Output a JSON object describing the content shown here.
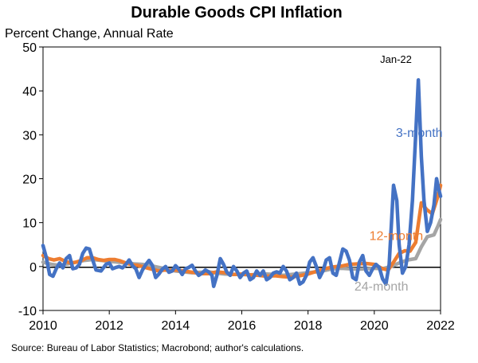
{
  "chart_data": {
    "type": "line",
    "title": "Durable Goods CPI Inflation",
    "ylabel": "Percent Change, Annual Rate",
    "source": "Source: Bureau of Labor Statistics; Macrobond; author's calculations.",
    "annotation": "Jan-22",
    "xlim": [
      2010,
      2022
    ],
    "ylim": [
      -10,
      50
    ],
    "x_ticks": [
      "2010",
      "2012",
      "2014",
      "2016",
      "2018",
      "2020",
      "2022"
    ],
    "y_ticks": [
      "50",
      "40",
      "30",
      "20",
      "10",
      "0",
      "-10"
    ],
    "grid": false,
    "series": [
      {
        "name": "24-month",
        "color": "#A5A5A5",
        "points": [
          [
            2010.0,
            1.0
          ],
          [
            2010.25,
            0.5
          ],
          [
            2010.5,
            0.3
          ],
          [
            2010.75,
            0.6
          ],
          [
            2011.0,
            1.0
          ],
          [
            2011.25,
            1.4
          ],
          [
            2011.5,
            1.6
          ],
          [
            2011.75,
            1.4
          ],
          [
            2012.0,
            1.2
          ],
          [
            2012.25,
            1.0
          ],
          [
            2012.5,
            0.8
          ],
          [
            2012.75,
            0.6
          ],
          [
            2013.0,
            0.5
          ],
          [
            2013.25,
            0.2
          ],
          [
            2013.5,
            -0.2
          ],
          [
            2013.75,
            -0.6
          ],
          [
            2014.0,
            -1.0
          ],
          [
            2014.25,
            -1.2
          ],
          [
            2014.5,
            -1.4
          ],
          [
            2014.75,
            -1.3
          ],
          [
            2015.0,
            -1.2
          ],
          [
            2015.25,
            -1.5
          ],
          [
            2015.5,
            -1.7
          ],
          [
            2015.75,
            -1.8
          ],
          [
            2016.0,
            -1.8
          ],
          [
            2016.25,
            -1.9
          ],
          [
            2016.5,
            -1.8
          ],
          [
            2016.75,
            -1.7
          ],
          [
            2017.0,
            -1.8
          ],
          [
            2017.25,
            -2.0
          ],
          [
            2017.5,
            -1.8
          ],
          [
            2017.75,
            -1.6
          ],
          [
            2018.0,
            -1.4
          ],
          [
            2018.25,
            -1.2
          ],
          [
            2018.5,
            -0.9
          ],
          [
            2018.75,
            -0.5
          ],
          [
            2019.0,
            -0.4
          ],
          [
            2019.25,
            -0.5
          ],
          [
            2019.5,
            -0.6
          ],
          [
            2019.75,
            -0.5
          ],
          [
            2020.0,
            -0.4
          ],
          [
            2020.25,
            -0.5
          ],
          [
            2020.5,
            0.0
          ],
          [
            2020.75,
            0.8
          ],
          [
            2021.0,
            1.5
          ],
          [
            2021.25,
            1.8
          ],
          [
            2021.42,
            4.5
          ],
          [
            2021.6,
            6.8
          ],
          [
            2021.8,
            7.2
          ],
          [
            2021.92,
            9.2
          ],
          [
            2022.0,
            10.7
          ]
        ]
      },
      {
        "name": "12-month",
        "color": "#ED7D31",
        "points": [
          [
            2010.0,
            2.5
          ],
          [
            2010.17,
            1.8
          ],
          [
            2010.33,
            1.5
          ],
          [
            2010.5,
            1.8
          ],
          [
            2010.67,
            1.2
          ],
          [
            2010.83,
            0.8
          ],
          [
            2011.0,
            1.0
          ],
          [
            2011.17,
            1.4
          ],
          [
            2011.33,
            2.0
          ],
          [
            2011.5,
            2.0
          ],
          [
            2011.67,
            1.6
          ],
          [
            2011.83,
            1.4
          ],
          [
            2012.0,
            1.6
          ],
          [
            2012.17,
            1.6
          ],
          [
            2012.33,
            1.3
          ],
          [
            2012.5,
            0.8
          ],
          [
            2012.67,
            0.4
          ],
          [
            2012.83,
            0.3
          ],
          [
            2013.0,
            0.0
          ],
          [
            2013.17,
            -0.4
          ],
          [
            2013.33,
            -0.7
          ],
          [
            2013.5,
            -1.0
          ],
          [
            2013.67,
            -0.8
          ],
          [
            2013.83,
            -0.9
          ],
          [
            2014.0,
            -0.8
          ],
          [
            2014.25,
            -1.0
          ],
          [
            2014.5,
            -1.3
          ],
          [
            2014.75,
            -1.6
          ],
          [
            2015.0,
            -1.6
          ],
          [
            2015.25,
            -1.2
          ],
          [
            2015.5,
            -1.4
          ],
          [
            2015.75,
            -1.8
          ],
          [
            2016.0,
            -1.7
          ],
          [
            2016.25,
            -1.9
          ],
          [
            2016.5,
            -2.0
          ],
          [
            2016.75,
            -2.2
          ],
          [
            2017.0,
            -2.1
          ],
          [
            2017.25,
            -2.3
          ],
          [
            2017.5,
            -2.4
          ],
          [
            2017.75,
            -2.1
          ],
          [
            2018.0,
            -1.7
          ],
          [
            2018.25,
            -1.1
          ],
          [
            2018.5,
            -0.5
          ],
          [
            2018.75,
            -0.1
          ],
          [
            2019.0,
            0.1
          ],
          [
            2019.25,
            0.5
          ],
          [
            2019.5,
            0.6
          ],
          [
            2019.75,
            0.7
          ],
          [
            2020.0,
            0.5
          ],
          [
            2020.25,
            -0.5
          ],
          [
            2020.42,
            -0.8
          ],
          [
            2020.58,
            1.0
          ],
          [
            2020.75,
            3.0
          ],
          [
            2020.92,
            3.6
          ],
          [
            2021.08,
            3.5
          ],
          [
            2021.25,
            5.5
          ],
          [
            2021.42,
            14.5
          ],
          [
            2021.58,
            13.0
          ],
          [
            2021.75,
            12.0
          ],
          [
            2021.92,
            16.0
          ],
          [
            2022.0,
            18.5
          ]
        ]
      },
      {
        "name": "3-month",
        "color": "#4472C4",
        "points": [
          [
            2010.0,
            4.8
          ],
          [
            2010.1,
            2.0
          ],
          [
            2010.2,
            -1.8
          ],
          [
            2010.3,
            -2.2
          ],
          [
            2010.4,
            -0.5
          ],
          [
            2010.5,
            0.8
          ],
          [
            2010.6,
            -0.3
          ],
          [
            2010.7,
            1.8
          ],
          [
            2010.8,
            2.5
          ],
          [
            2010.9,
            -0.5
          ],
          [
            2011.0,
            -0.3
          ],
          [
            2011.1,
            0.5
          ],
          [
            2011.2,
            3.0
          ],
          [
            2011.3,
            4.2
          ],
          [
            2011.4,
            4.0
          ],
          [
            2011.5,
            1.5
          ],
          [
            2011.6,
            -0.8
          ],
          [
            2011.75,
            -1.0
          ],
          [
            2011.9,
            0.5
          ],
          [
            2012.0,
            0.8
          ],
          [
            2012.1,
            -0.5
          ],
          [
            2012.2,
            -0.2
          ],
          [
            2012.3,
            0.0
          ],
          [
            2012.4,
            -0.3
          ],
          [
            2012.5,
            0.5
          ],
          [
            2012.6,
            1.5
          ],
          [
            2012.7,
            0.2
          ],
          [
            2012.8,
            -0.5
          ],
          [
            2012.9,
            -2.5
          ],
          [
            2013.0,
            -0.8
          ],
          [
            2013.1,
            0.4
          ],
          [
            2013.2,
            1.4
          ],
          [
            2013.3,
            0.3
          ],
          [
            2013.4,
            -2.5
          ],
          [
            2013.5,
            -1.7
          ],
          [
            2013.6,
            -0.6
          ],
          [
            2013.7,
            0.0
          ],
          [
            2013.8,
            -1.3
          ],
          [
            2013.9,
            -1.0
          ],
          [
            2014.0,
            0.2
          ],
          [
            2014.1,
            -0.6
          ],
          [
            2014.2,
            -1.8
          ],
          [
            2014.3,
            -0.5
          ],
          [
            2014.4,
            -0.2
          ],
          [
            2014.5,
            0.3
          ],
          [
            2014.6,
            -1.0
          ],
          [
            2014.7,
            -2.0
          ],
          [
            2014.8,
            -1.5
          ],
          [
            2014.9,
            -0.8
          ],
          [
            2015.0,
            -1.2
          ],
          [
            2015.1,
            -2.0
          ],
          [
            2015.15,
            -4.5
          ],
          [
            2015.25,
            -2.0
          ],
          [
            2015.35,
            1.8
          ],
          [
            2015.45,
            0.5
          ],
          [
            2015.55,
            -1.3
          ],
          [
            2015.65,
            -2.0
          ],
          [
            2015.75,
            0.0
          ],
          [
            2015.85,
            -1.0
          ],
          [
            2015.95,
            -2.5
          ],
          [
            2016.05,
            -1.5
          ],
          [
            2016.15,
            -1.0
          ],
          [
            2016.25,
            -3.0
          ],
          [
            2016.35,
            -2.5
          ],
          [
            2016.45,
            -1.0
          ],
          [
            2016.55,
            -2.0
          ],
          [
            2016.65,
            -1.0
          ],
          [
            2016.75,
            -3.0
          ],
          [
            2016.85,
            -2.5
          ],
          [
            2016.95,
            -1.5
          ],
          [
            2017.05,
            -1.2
          ],
          [
            2017.15,
            -1.5
          ],
          [
            2017.25,
            0.0
          ],
          [
            2017.35,
            -1.0
          ],
          [
            2017.45,
            -3.0
          ],
          [
            2017.55,
            -2.5
          ],
          [
            2017.65,
            -1.5
          ],
          [
            2017.75,
            -4.0
          ],
          [
            2017.85,
            -3.5
          ],
          [
            2017.95,
            -2.0
          ],
          [
            2018.05,
            1.0
          ],
          [
            2018.15,
            2.0
          ],
          [
            2018.25,
            0.0
          ],
          [
            2018.35,
            -2.5
          ],
          [
            2018.45,
            -1.0
          ],
          [
            2018.55,
            1.5
          ],
          [
            2018.65,
            2.0
          ],
          [
            2018.75,
            -1.5
          ],
          [
            2018.85,
            -2.0
          ],
          [
            2018.95,
            1.0
          ],
          [
            2019.05,
            4.0
          ],
          [
            2019.15,
            3.5
          ],
          [
            2019.25,
            1.5
          ],
          [
            2019.35,
            -2.5
          ],
          [
            2019.45,
            -3.0
          ],
          [
            2019.55,
            1.0
          ],
          [
            2019.65,
            2.5
          ],
          [
            2019.75,
            -1.0
          ],
          [
            2019.85,
            -2.0
          ],
          [
            2019.95,
            -0.5
          ],
          [
            2020.05,
            0.5
          ],
          [
            2020.15,
            -0.2
          ],
          [
            2020.25,
            -2.8
          ],
          [
            2020.35,
            -4.0
          ],
          [
            2020.45,
            0.5
          ],
          [
            2020.58,
            18.5
          ],
          [
            2020.68,
            15.0
          ],
          [
            2020.75,
            5.0
          ],
          [
            2020.85,
            -1.5
          ],
          [
            2020.95,
            0.0
          ],
          [
            2021.05,
            5.0
          ],
          [
            2021.15,
            15.0
          ],
          [
            2021.25,
            30.0
          ],
          [
            2021.33,
            42.5
          ],
          [
            2021.42,
            25.0
          ],
          [
            2021.5,
            15.0
          ],
          [
            2021.6,
            8.0
          ],
          [
            2021.7,
            10.0
          ],
          [
            2021.8,
            14.0
          ],
          [
            2021.88,
            20.0
          ],
          [
            2021.95,
            17.5
          ],
          [
            2022.0,
            16.0
          ]
        ]
      }
    ],
    "series_labels": [
      {
        "name": "3-month",
        "text": "3-month",
        "x": 2020.65,
        "y": 29.5
      },
      {
        "name": "12-month",
        "text": "12-month",
        "x": 2019.85,
        "y": 6.0
      },
      {
        "name": "24-month",
        "text": "24-month",
        "x": 2019.4,
        "y": -5.5
      }
    ]
  }
}
